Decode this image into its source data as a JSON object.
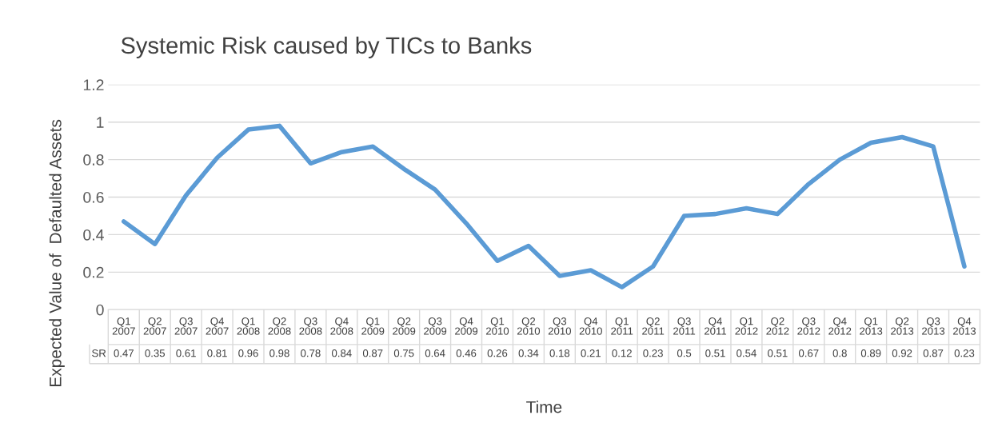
{
  "chart_data": {
    "type": "line",
    "title": "Systemic Risk caused by TICs to Banks",
    "xlabel": "Time",
    "ylabel": "Expected Value of  Defaulted Assets",
    "categories": [
      "Q1\n2007",
      "Q2\n2007",
      "Q3\n2007",
      "Q4\n2007",
      "Q1\n2008",
      "Q2\n2008",
      "Q3\n2008",
      "Q4\n2008",
      "Q1\n2009",
      "Q2\n2009",
      "Q3\n2009",
      "Q4\n2009",
      "Q1\n2010",
      "Q2\n2010",
      "Q3\n2010",
      "Q4\n2010",
      "Q1\n2011",
      "Q2\n2011",
      "Q3\n2011",
      "Q4\n2011",
      "Q1\n2012",
      "Q2\n2012",
      "Q3\n2012",
      "Q4\n2012",
      "Q1\n2013",
      "Q2\n2013",
      "Q3\n2013",
      "Q4\n2013"
    ],
    "series": [
      {
        "name": "SR",
        "color": "#5b9bd5",
        "values": [
          0.47,
          0.35,
          0.61,
          0.81,
          0.96,
          0.98,
          0.78,
          0.84,
          0.87,
          0.75,
          0.64,
          0.46,
          0.26,
          0.34,
          0.18,
          0.21,
          0.12,
          0.23,
          0.5,
          0.51,
          0.54,
          0.51,
          0.67,
          0.8,
          0.89,
          0.92,
          0.87,
          0.23
        ]
      }
    ],
    "ylim": [
      0,
      1.2
    ],
    "yticks": [
      0,
      0.2,
      0.4,
      0.6,
      0.8,
      1,
      1.2
    ],
    "grid": "y",
    "tick_labels": "y",
    "data_labels": true,
    "marker": "none",
    "line_style": "solid"
  }
}
